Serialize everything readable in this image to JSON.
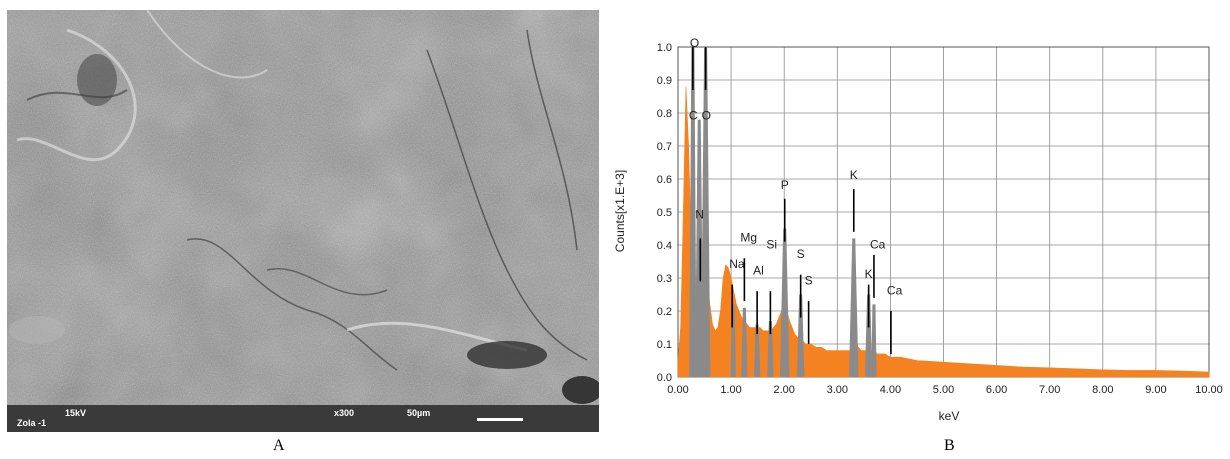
{
  "panels": {
    "a_label": "A",
    "b_label": "B"
  },
  "sem": {
    "sample": "Zola -1",
    "voltage": "15kV",
    "magnification": "x300",
    "scale": "50µm"
  },
  "chart_data": {
    "type": "bar",
    "title": "",
    "xlabel": "keV",
    "ylabel": "Counts[x1.E+3]",
    "xlim": [
      0,
      10
    ],
    "ylim": [
      0,
      1.0
    ],
    "grid": true,
    "x_ticks": [
      "0.00",
      "1.00",
      "2.00",
      "3.00",
      "4.00",
      "5.00",
      "6.00",
      "7.00",
      "8.00",
      "9.00",
      "10.00"
    ],
    "y_ticks": [
      "0.0",
      "0.1",
      "0.2",
      "0.3",
      "0.4",
      "0.5",
      "0.6",
      "0.7",
      "0.8",
      "0.9",
      "1.0"
    ],
    "colors": {
      "spectrum": "#f58220",
      "peaks": "#8a8a8a",
      "grid": "#8c8c8c"
    },
    "spectrum": {
      "x": [
        0.0,
        0.05,
        0.1,
        0.15,
        0.2,
        0.25,
        0.3,
        0.35,
        0.4,
        0.45,
        0.5,
        0.55,
        0.6,
        0.65,
        0.7,
        0.75,
        0.8,
        0.85,
        0.9,
        0.95,
        1.0,
        1.05,
        1.1,
        1.15,
        1.2,
        1.25,
        1.3,
        1.35,
        1.4,
        1.45,
        1.5,
        1.55,
        1.6,
        1.65,
        1.7,
        1.75,
        1.8,
        1.85,
        1.9,
        1.95,
        2.0,
        2.05,
        2.1,
        2.15,
        2.2,
        2.25,
        2.3,
        2.35,
        2.4,
        2.45,
        2.5,
        2.6,
        2.7,
        2.8,
        2.9,
        3.0,
        3.1,
        3.2,
        3.25,
        3.3,
        3.35,
        3.4,
        3.45,
        3.5,
        3.55,
        3.6,
        3.65,
        3.7,
        3.75,
        3.8,
        3.9,
        4.0,
        4.2,
        4.5,
        5.0,
        5.5,
        6.0,
        6.5,
        7.0,
        7.5,
        8.0,
        8.5,
        9.0,
        9.5,
        10.0
      ],
      "y": [
        0.05,
        0.15,
        0.5,
        0.88,
        0.7,
        0.4,
        0.3,
        0.25,
        0.25,
        0.28,
        0.33,
        0.3,
        0.22,
        0.16,
        0.14,
        0.15,
        0.2,
        0.3,
        0.34,
        0.33,
        0.3,
        0.26,
        0.22,
        0.2,
        0.18,
        0.17,
        0.16,
        0.15,
        0.15,
        0.15,
        0.15,
        0.15,
        0.14,
        0.14,
        0.14,
        0.14,
        0.15,
        0.16,
        0.18,
        0.2,
        0.22,
        0.2,
        0.17,
        0.15,
        0.13,
        0.12,
        0.12,
        0.11,
        0.1,
        0.1,
        0.1,
        0.09,
        0.09,
        0.08,
        0.08,
        0.08,
        0.08,
        0.08,
        0.08,
        0.09,
        0.1,
        0.09,
        0.08,
        0.08,
        0.08,
        0.08,
        0.08,
        0.08,
        0.07,
        0.07,
        0.07,
        0.06,
        0.06,
        0.05,
        0.045,
        0.04,
        0.035,
        0.03,
        0.028,
        0.025,
        0.022,
        0.02,
        0.02,
        0.018,
        0.015
      ]
    },
    "peaks": [
      {
        "center": 0.28,
        "height": 1.0,
        "width": 0.07
      },
      {
        "center": 0.52,
        "height": 1.0,
        "width": 0.09
      },
      {
        "center": 0.4,
        "height": 0.78,
        "width": 0.08
      },
      {
        "center": 1.04,
        "height": 0.22,
        "width": 0.05
      },
      {
        "center": 1.25,
        "height": 0.21,
        "width": 0.06
      },
      {
        "center": 1.49,
        "height": 0.16,
        "width": 0.06
      },
      {
        "center": 1.74,
        "height": 0.17,
        "width": 0.06
      },
      {
        "center": 2.01,
        "height": 0.45,
        "width": 0.09
      },
      {
        "center": 2.31,
        "height": 0.25,
        "width": 0.07
      },
      {
        "center": 3.31,
        "height": 0.42,
        "width": 0.09
      },
      {
        "center": 3.59,
        "height": 0.25,
        "width": 0.07
      },
      {
        "center": 3.69,
        "height": 0.22,
        "width": 0.05
      }
    ],
    "labels": [
      {
        "text": "C",
        "x": 0.28,
        "y": 0.78
      },
      {
        "text": "O",
        "x": 0.52,
        "y": 0.78
      },
      {
        "text": "O",
        "x": 0.3,
        "y": 1.0
      },
      {
        "text": "N",
        "x": 0.4,
        "y": 0.48
      },
      {
        "text": "Na",
        "x": 1.04,
        "y": 0.33
      },
      {
        "text": "Mg",
        "x": 1.25,
        "y": 0.41
      },
      {
        "text": "Al",
        "x": 1.49,
        "y": 0.31
      },
      {
        "text": "Si",
        "x": 1.74,
        "y": 0.39
      },
      {
        "text": "P",
        "x": 2.01,
        "y": 0.57
      },
      {
        "text": "S",
        "x": 2.31,
        "y": 0.36
      },
      {
        "text": "S",
        "x": 2.46,
        "y": 0.28
      },
      {
        "text": "K",
        "x": 3.31,
        "y": 0.6
      },
      {
        "text": "Ca",
        "x": 3.69,
        "y": 0.39
      },
      {
        "text": "K",
        "x": 3.59,
        "y": 0.3
      },
      {
        "text": "Ca",
        "x": 4.01,
        "y": 0.25
      }
    ],
    "markers": [
      {
        "x": 0.28,
        "y": 1.0
      },
      {
        "x": 0.52,
        "y": 1.0
      },
      {
        "x": 0.42,
        "y": 0.42
      },
      {
        "x": 1.02,
        "y": 0.28
      },
      {
        "x": 1.25,
        "y": 0.36
      },
      {
        "x": 1.49,
        "y": 0.26
      },
      {
        "x": 1.74,
        "y": 0.26
      },
      {
        "x": 2.01,
        "y": 0.54
      },
      {
        "x": 2.31,
        "y": 0.31
      },
      {
        "x": 2.46,
        "y": 0.23
      },
      {
        "x": 3.31,
        "y": 0.57
      },
      {
        "x": 3.59,
        "y": 0.28
      },
      {
        "x": 3.69,
        "y": 0.37
      },
      {
        "x": 4.01,
        "y": 0.2
      }
    ]
  }
}
